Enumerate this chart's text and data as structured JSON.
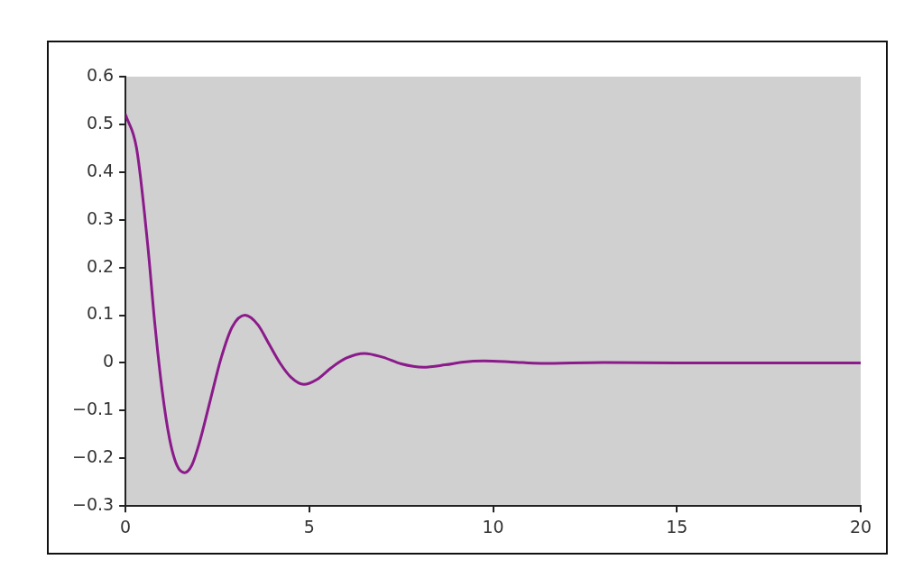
{
  "chart_data": {
    "type": "line",
    "color": "#8b1a8b",
    "marker": "none",
    "line_style": "solid",
    "x": [
      0,
      0.3,
      0.6,
      0.8,
      1.0,
      1.2,
      1.4,
      1.6,
      1.8,
      2.0,
      2.3,
      2.6,
      2.9,
      3.25,
      3.6,
      3.9,
      4.2,
      4.5,
      4.85,
      5.2,
      5.6,
      6.0,
      6.5,
      7.0,
      7.5,
      8.1,
      8.7,
      9.2,
      9.75,
      10.5,
      11.3,
      13,
      15,
      20
    ],
    "values": [
      0.52,
      0.45,
      0.25,
      0.08,
      -0.06,
      -0.16,
      -0.215,
      -0.23,
      -0.215,
      -0.17,
      -0.08,
      0.01,
      0.075,
      0.1,
      0.08,
      0.04,
      0.0,
      -0.03,
      -0.045,
      -0.035,
      -0.01,
      0.01,
      0.02,
      0.012,
      -0.002,
      -0.009,
      -0.004,
      0.002,
      0.004,
      0.002,
      -0.001,
      0.001,
      0,
      0
    ],
    "xlim": [
      0,
      20
    ],
    "xticks": [
      0,
      5,
      10,
      15,
      20
    ],
    "ylim": [
      -0.3,
      0.6
    ],
    "yticks": [
      -0.3,
      -0.2,
      -0.1,
      0,
      0.1,
      0.2,
      0.3,
      0.4,
      0.5,
      0.6
    ]
  }
}
